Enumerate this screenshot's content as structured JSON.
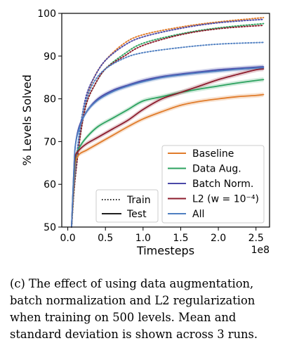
{
  "caption": "(c) The effect of using data augmentation, batch normalization and L2 regularization when training on 500 levels. Mean and standard deviation is shown across 3 runs.",
  "chart_data": {
    "type": "line",
    "ylabel": "% Levels Solved",
    "xlabel": "Timesteps",
    "x_offset_label": "1e8",
    "xlim": [
      -0.08,
      2.68
    ],
    "ylim": [
      50,
      100
    ],
    "x_ticks": [
      0.0,
      0.5,
      1.0,
      1.5,
      2.0,
      2.5
    ],
    "x_tick_labels": [
      "0.0",
      "0.5",
      "1.0",
      "1.5",
      "2.0",
      "2.5"
    ],
    "y_ticks": [
      50,
      60,
      70,
      80,
      90,
      100
    ],
    "y_tick_labels": [
      "50",
      "60",
      "70",
      "80",
      "90",
      "100"
    ],
    "grid": false,
    "legend_style": {
      "position": "bottom-left",
      "entries": [
        {
          "label": "Train",
          "dash": "dotted"
        },
        {
          "label": "Test",
          "dash": "solid"
        }
      ]
    },
    "legend_series": {
      "position": "bottom-right",
      "entries": [
        {
          "label": "Baseline",
          "color": "#e07b2a"
        },
        {
          "label": "Data Aug.",
          "color": "#2ca25f"
        },
        {
          "label": "Batch Norm.",
          "color": "#4b49a8"
        },
        {
          "label": "L2 (w = 10⁻⁴)",
          "color": "#8c1c2c"
        },
        {
          "label": "All",
          "color": "#4f7fc1"
        }
      ]
    },
    "series": [
      {
        "name": "Baseline",
        "split": "Train",
        "color": "#e07b2a",
        "dash": "dotted",
        "x": [
          0.05,
          0.08,
          0.12,
          0.18,
          0.25,
          0.35,
          0.5,
          0.75,
          1.0,
          1.5,
          2.0,
          2.6
        ],
        "y": [
          50,
          58,
          66,
          74,
          80,
          85,
          89,
          93,
          95,
          96.8,
          98,
          99
        ]
      },
      {
        "name": "Data Aug.",
        "split": "Train",
        "color": "#2ca25f",
        "dash": "dotted",
        "x": [
          0.05,
          0.08,
          0.12,
          0.18,
          0.25,
          0.35,
          0.5,
          0.75,
          1.0,
          1.5,
          2.0,
          2.6
        ],
        "y": [
          50,
          58,
          65,
          73,
          79,
          83,
          87,
          90.5,
          93,
          95.2,
          96.6,
          97.6
        ]
      },
      {
        "name": "Batch Norm.",
        "split": "Train",
        "color": "#4b49a8",
        "dash": "dotted",
        "x": [
          0.05,
          0.08,
          0.12,
          0.18,
          0.25,
          0.35,
          0.5,
          0.75,
          1.0,
          1.5,
          2.0,
          2.6
        ],
        "y": [
          50,
          59,
          67,
          75,
          81,
          85,
          89,
          92.5,
          94.5,
          96.5,
          97.8,
          98.6
        ]
      },
      {
        "name": "L2 (w = 10⁻⁴)",
        "split": "Train",
        "color": "#8c1c2c",
        "dash": "dotted",
        "x": [
          0.05,
          0.08,
          0.12,
          0.18,
          0.25,
          0.35,
          0.5,
          0.75,
          1.0,
          1.5,
          2.0,
          2.6
        ],
        "y": [
          50,
          58,
          65,
          73,
          79,
          83,
          87,
          90,
          92.5,
          95,
          96.4,
          97.2
        ]
      },
      {
        "name": "All",
        "split": "Train",
        "color": "#4f7fc1",
        "dash": "dotted",
        "x": [
          0.05,
          0.08,
          0.12,
          0.18,
          0.25,
          0.35,
          0.5,
          0.75,
          1.0,
          1.5,
          2.0,
          2.6
        ],
        "y": [
          50,
          59,
          67,
          75,
          80,
          84,
          87,
          89.5,
          90.8,
          92,
          92.8,
          93.2
        ]
      },
      {
        "name": "Baseline",
        "split": "Test",
        "color": "#e07b2a",
        "dash": "solid",
        "x": [
          0.05,
          0.08,
          0.1,
          0.15,
          0.25,
          0.4,
          0.6,
          0.8,
          1.0,
          1.25,
          1.5,
          1.75,
          2.0,
          2.25,
          2.5,
          2.6
        ],
        "y": [
          50,
          60,
          65,
          67,
          68,
          69.5,
          71.5,
          73.5,
          75.3,
          77,
          78.5,
          79.4,
          80,
          80.5,
          80.8,
          81
        ]
      },
      {
        "name": "Data Aug.",
        "split": "Test",
        "color": "#2ca25f",
        "dash": "solid",
        "x": [
          0.05,
          0.08,
          0.1,
          0.15,
          0.25,
          0.4,
          0.6,
          0.8,
          1.0,
          1.25,
          1.5,
          1.75,
          2.0,
          2.25,
          2.5,
          2.6
        ],
        "y": [
          50,
          61,
          66,
          68.5,
          71,
          73.5,
          75.5,
          77.5,
          79.5,
          80.5,
          81.5,
          82.3,
          83,
          83.7,
          84.3,
          84.5
        ]
      },
      {
        "name": "Batch Norm.",
        "split": "Test",
        "color": "#4b49a8",
        "dash": "solid",
        "x": [
          0.05,
          0.08,
          0.1,
          0.15,
          0.25,
          0.4,
          0.6,
          0.8,
          1.0,
          1.25,
          1.5,
          1.75,
          2.0,
          2.25,
          2.5,
          2.6
        ],
        "y": [
          50,
          63,
          69,
          73.5,
          77,
          80,
          82,
          83.2,
          84.3,
          85.2,
          85.8,
          86.3,
          86.8,
          87.1,
          87.4,
          87.5
        ]
      },
      {
        "name": "L2 (w = 10⁻⁴)",
        "split": "Test",
        "color": "#8c1c2c",
        "dash": "solid",
        "x": [
          0.05,
          0.08,
          0.1,
          0.15,
          0.25,
          0.4,
          0.6,
          0.8,
          1.0,
          1.25,
          1.5,
          1.75,
          2.0,
          2.25,
          2.5,
          2.6
        ],
        "y": [
          50,
          62,
          66.5,
          68,
          69.5,
          71,
          73,
          75,
          77.5,
          80,
          81.5,
          83,
          84.5,
          85.7,
          86.8,
          87
        ]
      },
      {
        "name": "All",
        "split": "Test",
        "color": "#4f7fc1",
        "dash": "solid",
        "x": [
          0.05,
          0.08,
          0.1,
          0.15,
          0.25,
          0.4,
          0.6,
          0.8,
          1.0,
          1.25,
          1.5,
          1.75,
          2.0,
          2.25,
          2.5,
          2.6
        ],
        "y": [
          50,
          63,
          69,
          73,
          77,
          79.7,
          81.7,
          83,
          84,
          85,
          85.6,
          86.1,
          86.5,
          86.9,
          87.2,
          87.3
        ]
      }
    ]
  }
}
